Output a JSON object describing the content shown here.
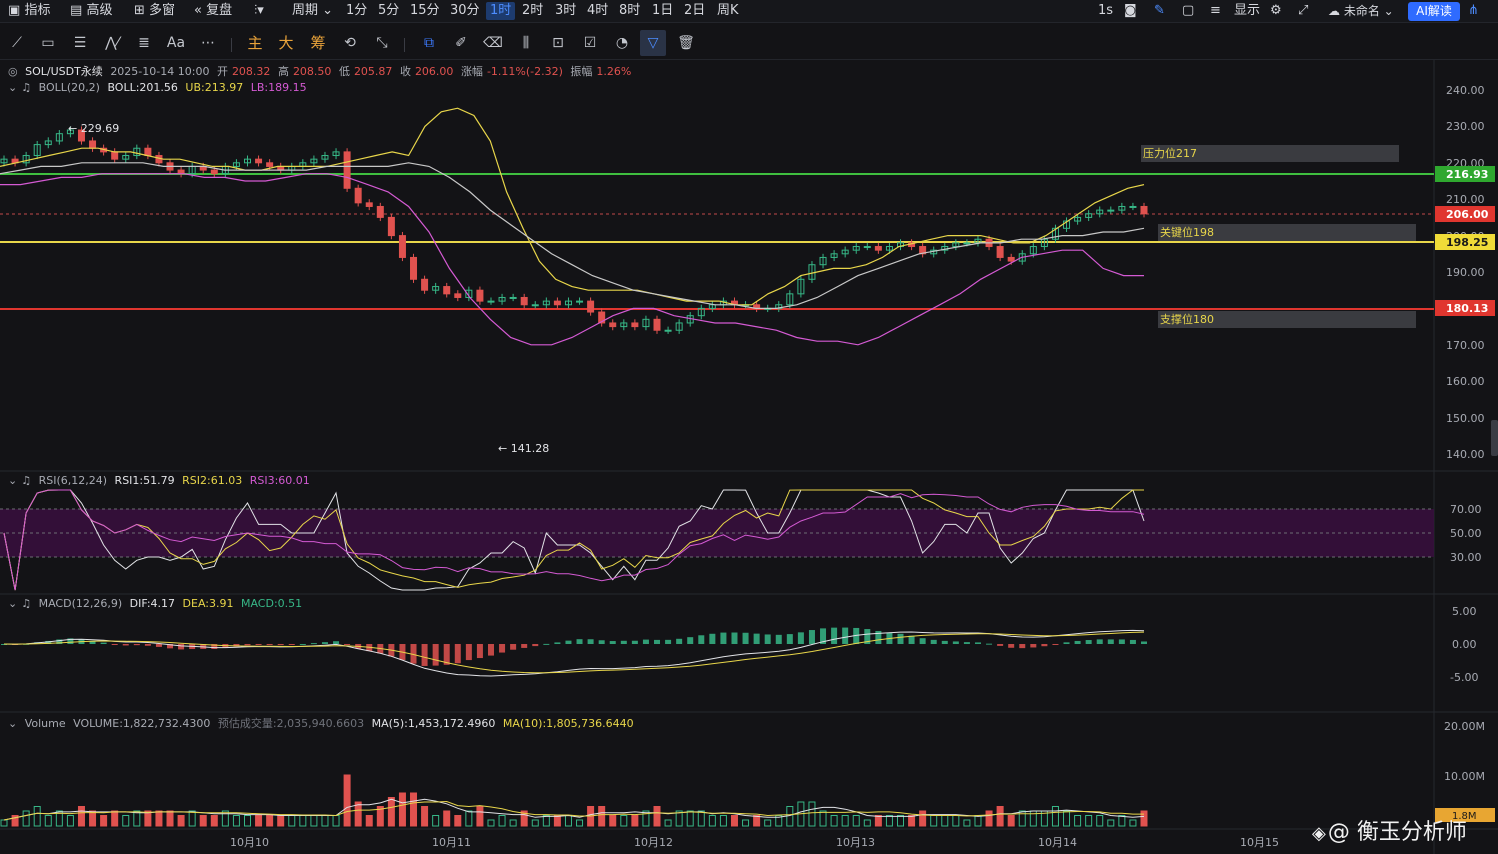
{
  "topbar": {
    "items": [
      {
        "label": "指标",
        "icon": "indicator-icon"
      },
      {
        "label": "高级",
        "icon": "calendar-icon"
      },
      {
        "label": "多窗",
        "icon": "multiwindow-icon"
      },
      {
        "label": "复盘",
        "icon": "replay-icon"
      },
      {
        "label": "周期",
        "icon": "candles-icon"
      }
    ],
    "intervals": [
      "1分",
      "5分",
      "15分",
      "30分",
      "1时",
      "2时",
      "3时",
      "4时",
      "8时",
      "1日",
      "2日",
      "周K"
    ],
    "active_interval": "1时",
    "right": {
      "refresh": "1s",
      "display": "显示",
      "layout_name": "未命名",
      "ai_button": "AI解读"
    }
  },
  "toolbar": {
    "cn_tools": [
      "主",
      "大",
      "筹"
    ]
  },
  "main_info": {
    "symbol": "SOL/USDT永续",
    "datetime": "2025-10-14 10:00",
    "open_label": "开",
    "open": "208.32",
    "high_label": "高",
    "high": "208.50",
    "low_label": "低",
    "low": "205.87",
    "close_label": "收",
    "close": "206.00",
    "change_label": "涨幅",
    "change": "-1.11%(-2.32)",
    "amp_label": "振幅",
    "amp": "1.26%"
  },
  "boll_info": {
    "name": "BOLL(20,2)",
    "boll": "BOLL:201.56",
    "ub": "UB:213.97",
    "lb": "LB:189.15"
  },
  "rsi_info": {
    "name": "RSI(6,12,24)",
    "rsi1": "RSI1:51.79",
    "rsi2": "RSI2:61.03",
    "rsi3": "RSI3:60.01"
  },
  "macd_info": {
    "name": "MACD(12,26,9)",
    "dif": "DIF:4.17",
    "dea": "DEA:3.91",
    "macd": "MACD:0.51"
  },
  "vol_info": {
    "name": "Volume",
    "volume": "VOLUME:1,822,732.4300",
    "est": "预估成交量:2,035,940.6603",
    "ma5": "MA(5):1,453,172.4960",
    "ma10": "MA(10):1,805,736.6440"
  },
  "price_axis": [
    "240.00",
    "230.00",
    "220.00",
    "210.00",
    "200.00",
    "190.00",
    "180.00",
    "170.00",
    "160.00",
    "150.00",
    "140.00"
  ],
  "rsi_axis": [
    "70.00",
    "50.00",
    "30.00"
  ],
  "macd_axis": [
    "5.00",
    "0.00",
    "-5.00"
  ],
  "vol_axis": [
    "20.00M",
    "10.00M",
    "1.8M"
  ],
  "time_axis": [
    "10月10",
    "10月11",
    "10月12",
    "10月13",
    "10月14",
    "10月15"
  ],
  "levels": {
    "resistance_label": "压力位217",
    "key_label": "关键位198",
    "support_label": "支撑位180",
    "green_line": "216.93",
    "current": "206.00",
    "yellow_line": "198.25",
    "red_line": "180.13"
  },
  "annotations": {
    "high": "← 229.69",
    "low": "← 141.28"
  },
  "watermark": "@ 衡玉分析师",
  "colors": {
    "up": "#37b787",
    "down": "#e0524f",
    "boll_mid": "#c8c8c8",
    "boll_ub": "#e8d64a",
    "boll_lb": "#d45ad3",
    "accent": "#2f6bff"
  },
  "chart_data": {
    "type": "candlestick",
    "timeframe": "1时",
    "price_closes": [
      221,
      220,
      222,
      225,
      226,
      228,
      229,
      226,
      224,
      223,
      221,
      222,
      224,
      222,
      220,
      218,
      217,
      219,
      218,
      217,
      219,
      220,
      221,
      220,
      219,
      218,
      219,
      220,
      221,
      222,
      223,
      213,
      209,
      208,
      205,
      200,
      194,
      188,
      185,
      186,
      184,
      183,
      185,
      182,
      182,
      183,
      183,
      181,
      181,
      182,
      181,
      182,
      182,
      179,
      176,
      175,
      176,
      175,
      177,
      174,
      174,
      176,
      178,
      180,
      181,
      182,
      181,
      181,
      180,
      180,
      181,
      184,
      188,
      192,
      194,
      195,
      196,
      197,
      197,
      196,
      197,
      198,
      197,
      195,
      196,
      197,
      198,
      198,
      199,
      197,
      194,
      193,
      195,
      197,
      199,
      202,
      204,
      205,
      206,
      207,
      207,
      208,
      208,
      206
    ],
    "boll_ub": [
      219,
      220,
      221,
      222,
      223,
      224,
      224,
      223,
      223,
      222,
      221,
      221,
      220,
      219,
      219,
      218,
      218,
      219,
      219,
      219,
      219,
      220,
      221,
      222,
      223,
      222,
      230,
      234,
      235,
      233,
      226,
      212,
      202,
      193,
      188,
      186,
      185,
      185,
      185,
      185,
      184,
      183,
      182,
      182,
      182,
      181,
      181,
      184,
      186,
      189,
      190,
      191,
      191,
      192,
      194,
      197,
      198,
      199,
      200,
      200,
      200,
      199,
      198,
      198,
      200,
      203,
      206,
      209,
      211,
      213,
      214
    ],
    "boll_mid": [
      217,
      218,
      219,
      219,
      220,
      220,
      220,
      220,
      219,
      219,
      219,
      218,
      218,
      218,
      218,
      218,
      219,
      219,
      219,
      219,
      220,
      219,
      216,
      212,
      207,
      203,
      199,
      195,
      192,
      189,
      187,
      185,
      184,
      183,
      182,
      181,
      181,
      180,
      180,
      181,
      183,
      186,
      189,
      191,
      193,
      195,
      196,
      197,
      198,
      198,
      199,
      199,
      200,
      200,
      201,
      201,
      202
    ],
    "boll_lb": [
      214,
      214,
      215,
      216,
      216,
      217,
      217,
      217,
      217,
      217,
      216,
      216,
      215,
      215,
      216,
      217,
      217,
      216,
      214,
      212,
      208,
      201,
      191,
      183,
      177,
      172,
      170,
      170,
      172,
      175,
      178,
      180,
      180,
      178,
      177,
      176,
      176,
      175,
      174,
      172,
      171,
      171,
      170,
      172,
      175,
      178,
      181,
      184,
      188,
      191,
      194,
      195,
      196,
      196,
      191,
      189,
      189
    ]
  }
}
